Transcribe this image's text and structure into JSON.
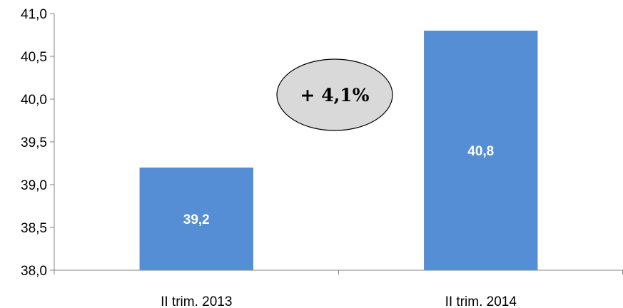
{
  "chart_data": {
    "type": "bar",
    "categories": [
      "II trim. 2013",
      "II trim. 2014"
    ],
    "values": [
      39.2,
      40.8
    ],
    "data_labels": [
      "39,2",
      "40,8"
    ],
    "ylim": [
      38.0,
      41.0
    ],
    "y_ticks": [
      {
        "value": 38.0,
        "label": "38,0"
      },
      {
        "value": 38.5,
        "label": "38,5"
      },
      {
        "value": 39.0,
        "label": "39,0"
      },
      {
        "value": 39.5,
        "label": "39,5"
      },
      {
        "value": 40.0,
        "label": "40,0"
      },
      {
        "value": 40.5,
        "label": "40,5"
      },
      {
        "value": 41.0,
        "label": "41,0"
      }
    ],
    "annotation": "+ 4,1%",
    "bar_color": "#558ED5",
    "annotation_fill": "#D9D9D9",
    "grid": false,
    "legend": "none"
  }
}
